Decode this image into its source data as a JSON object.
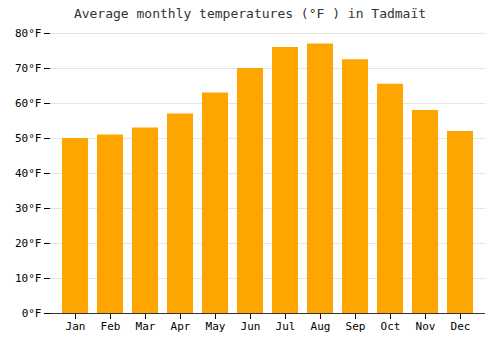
{
  "chart_data": {
    "type": "bar",
    "title": "Average monthly temperatures (°F ) in Tadmaït",
    "categories": [
      "Jan",
      "Feb",
      "Mar",
      "Apr",
      "May",
      "Jun",
      "Jul",
      "Aug",
      "Sep",
      "Oct",
      "Nov",
      "Dec"
    ],
    "values": [
      50,
      51,
      53,
      57,
      63,
      70,
      76,
      77,
      72.5,
      65.5,
      58,
      52
    ],
    "color": "#FFA500",
    "ylim": [
      0,
      80
    ],
    "yticks": [
      {
        "value": 0,
        "label": "0°F"
      },
      {
        "value": 10,
        "label": "10°F"
      },
      {
        "value": 20,
        "label": "20°F"
      },
      {
        "value": 30,
        "label": "30°F"
      },
      {
        "value": 40,
        "label": "40°F"
      },
      {
        "value": 50,
        "label": "50°F"
      },
      {
        "value": 60,
        "label": "60°F"
      },
      {
        "value": 70,
        "label": "70°F"
      },
      {
        "value": 80,
        "label": "80°F"
      }
    ],
    "grid": true
  }
}
